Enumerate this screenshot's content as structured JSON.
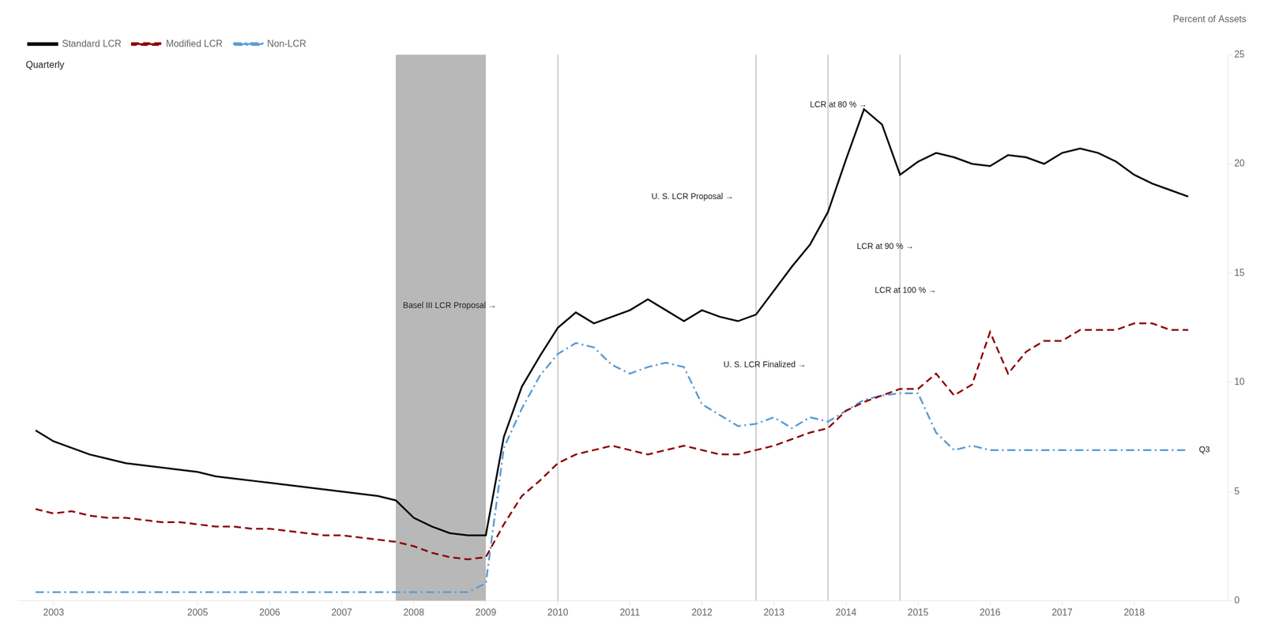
{
  "chart_data": {
    "type": "line",
    "subtitle": "Quarterly",
    "ylabel": "Percent of Assets",
    "x": [
      2002.75,
      2003.0,
      2003.25,
      2003.5,
      2003.75,
      2004.0,
      2004.25,
      2004.5,
      2004.75,
      2005.0,
      2005.25,
      2005.5,
      2005.75,
      2006.0,
      2006.25,
      2006.5,
      2006.75,
      2007.0,
      2007.25,
      2007.5,
      2007.75,
      2008.0,
      2008.25,
      2008.5,
      2008.75,
      2009.0,
      2009.25,
      2009.5,
      2009.75,
      2010.0,
      2010.25,
      2010.5,
      2010.75,
      2011.0,
      2011.25,
      2011.5,
      2011.75,
      2012.0,
      2012.25,
      2012.5,
      2012.75,
      2013.0,
      2013.25,
      2013.5,
      2013.75,
      2014.0,
      2014.25,
      2014.5,
      2014.75,
      2015.0,
      2015.25,
      2015.5,
      2015.75,
      2016.0,
      2016.25,
      2016.5,
      2016.75,
      2017.0,
      2017.25,
      2017.5,
      2017.75,
      2018.0,
      2018.25,
      2018.5,
      2018.75
    ],
    "series": [
      {
        "name": "Standard LCR",
        "color": "#000000",
        "line_style": "solid",
        "values": [
          7.8,
          7.3,
          7.0,
          6.7,
          6.5,
          6.3,
          6.2,
          6.1,
          6.0,
          5.9,
          5.7,
          5.6,
          5.5,
          5.4,
          5.3,
          5.2,
          5.1,
          5.0,
          4.9,
          4.8,
          4.6,
          3.8,
          3.4,
          3.1,
          3.0,
          3.0,
          7.5,
          9.8,
          11.2,
          12.5,
          13.2,
          12.7,
          13.0,
          13.3,
          13.8,
          13.3,
          12.8,
          13.3,
          13.0,
          12.8,
          13.1,
          14.2,
          15.3,
          16.3,
          17.8,
          20.2,
          22.5,
          21.8,
          19.5,
          20.1,
          20.5,
          20.3,
          20.0,
          19.9,
          20.4,
          20.3,
          20.0,
          20.5,
          20.7,
          20.5,
          20.1,
          19.5,
          19.1,
          18.8,
          18.5
        ]
      },
      {
        "name": "Modified LCR",
        "color": "#8B0000",
        "line_style": "dashed",
        "values": [
          4.2,
          4.0,
          4.1,
          3.9,
          3.8,
          3.8,
          3.7,
          3.6,
          3.6,
          3.5,
          3.4,
          3.4,
          3.3,
          3.3,
          3.2,
          3.1,
          3.0,
          3.0,
          2.9,
          2.8,
          2.7,
          2.5,
          2.2,
          2.0,
          1.9,
          2.0,
          3.5,
          4.8,
          5.5,
          6.3,
          6.7,
          6.9,
          7.1,
          6.9,
          6.7,
          6.9,
          7.1,
          6.9,
          6.7,
          6.7,
          6.9,
          7.1,
          7.4,
          7.7,
          7.9,
          8.7,
          9.1,
          9.4,
          9.7,
          9.7,
          10.4,
          9.4,
          9.9,
          12.3,
          10.4,
          11.4,
          11.9,
          11.9,
          12.4,
          12.4,
          12.4,
          12.7,
          12.7,
          12.4,
          12.4
        ]
      },
      {
        "name": "Non-LCR",
        "color": "#5B9BD5",
        "line_style": "dashdot",
        "values": [
          0.4,
          0.4,
          0.4,
          0.4,
          0.4,
          0.4,
          0.4,
          0.4,
          0.4,
          0.4,
          0.4,
          0.4,
          0.4,
          0.4,
          0.4,
          0.4,
          0.4,
          0.4,
          0.4,
          0.4,
          0.4,
          0.4,
          0.4,
          0.4,
          0.4,
          0.8,
          7.0,
          8.8,
          10.3,
          11.3,
          11.8,
          11.6,
          10.8,
          10.4,
          10.7,
          10.9,
          10.7,
          9.0,
          8.5,
          8.0,
          8.1,
          8.4,
          7.9,
          8.4,
          8.2,
          8.7,
          9.2,
          9.4,
          9.5,
          9.5,
          7.7,
          6.9,
          7.1,
          6.9,
          6.9,
          6.9,
          6.9,
          6.9,
          6.9,
          6.9,
          6.9,
          6.9,
          6.9,
          6.9,
          6.9
        ]
      }
    ],
    "xlim": [
      2002.5,
      2019.3
    ],
    "xticks": [
      2003,
      2005,
      2006,
      2007,
      2008,
      2009,
      2010,
      2011,
      2012,
      2013,
      2014,
      2015,
      2016,
      2017,
      2018
    ],
    "ylim": [
      0,
      25
    ],
    "yticks": [
      0,
      5,
      10,
      15,
      20,
      25
    ],
    "grid": false,
    "legend": "upper left",
    "shaded_regions": [
      {
        "xmin": 2007.75,
        "xmax": 2009.0,
        "color": "#b8b8b8"
      }
    ],
    "vlines": {
      "values": [
        2010.0,
        2012.75,
        2013.75,
        2014.75
      ],
      "color": "#b8b8b8"
    },
    "annotations": [
      {
        "text": "Basel III LCR Proposal →",
        "x": 2007.85,
        "y": 13.5
      },
      {
        "text": "U. S. LCR Proposal →",
        "x": 2011.3,
        "y": 18.5
      },
      {
        "text": "U. S. LCR Finalized →",
        "x": 2012.3,
        "y": 10.8
      },
      {
        "text": "LCR at 80 % →",
        "x": 2013.5,
        "y": 22.7
      },
      {
        "text": "LCR at 90 % →",
        "x": 2014.15,
        "y": 16.2
      },
      {
        "text": "LCR at 100 % →",
        "x": 2014.4,
        "y": 14.2
      },
      {
        "text": "Q3",
        "x": 2018.9,
        "y": 6.9
      }
    ]
  }
}
